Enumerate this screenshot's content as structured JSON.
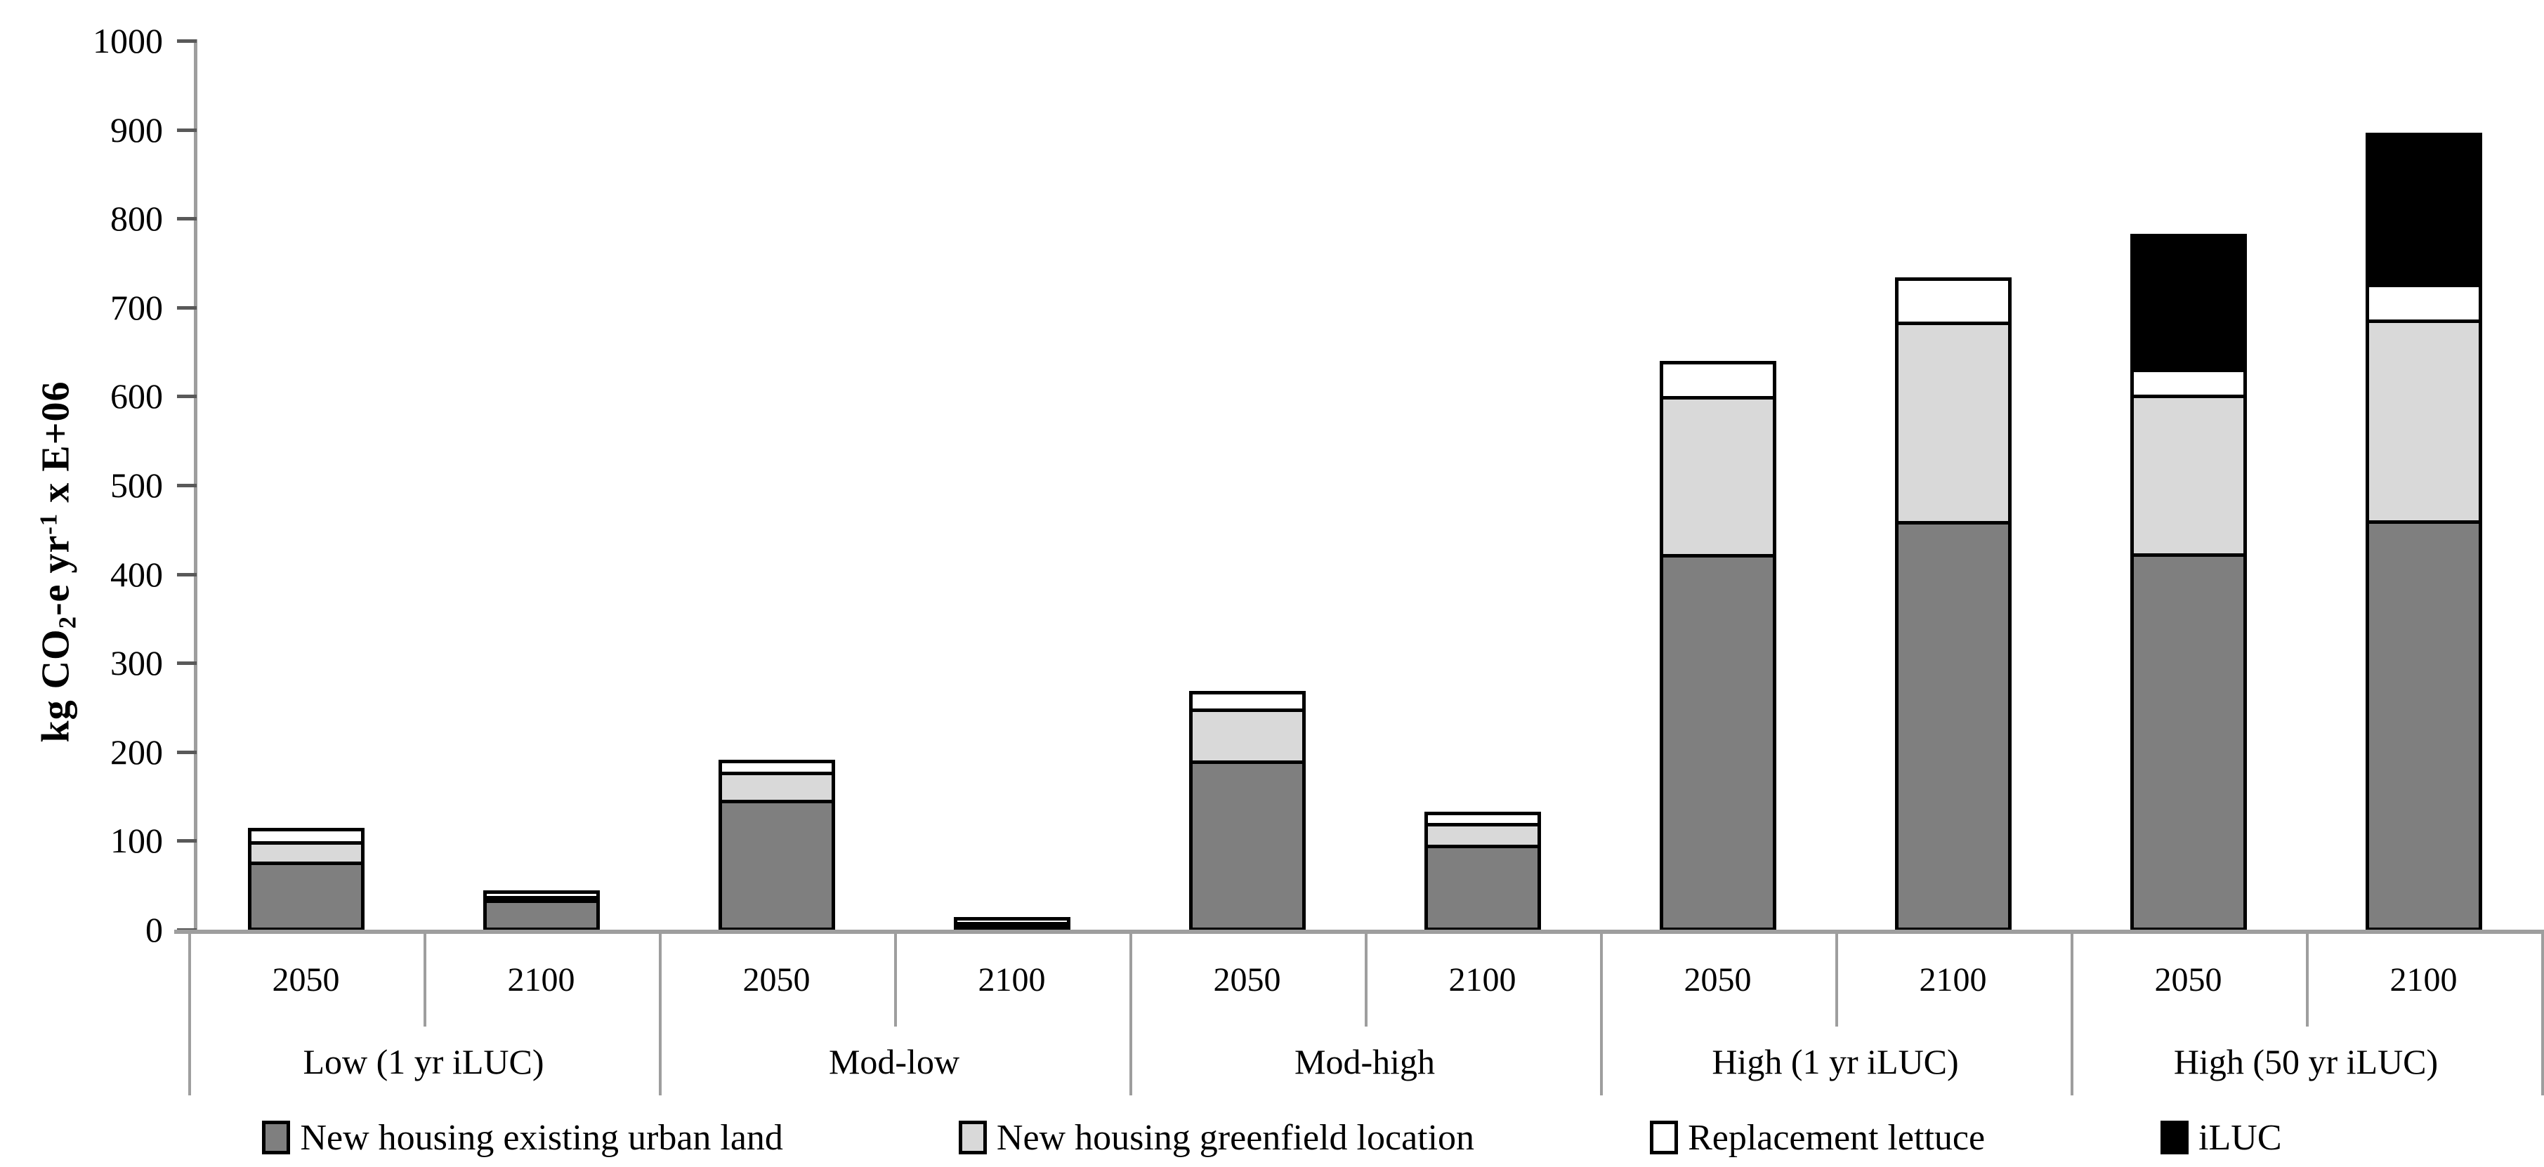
{
  "figure": {
    "ylabel_parts": {
      "pre": "kg CO",
      "sub": "2",
      "mid": "-e yr",
      "sup": "-1",
      "post": " x E+06"
    },
    "colors": {
      "series_dark_gray": "#7f7f7f",
      "series_light_gray": "#d9d9d9",
      "series_white": "#ffffff",
      "series_black": "#000000",
      "segment_outline": "#000000",
      "axis_line": "#9e9e9e",
      "tick_mark": "#595959",
      "text": "#000000",
      "background": "#ffffff"
    }
  },
  "chart_data": {
    "type": "bar",
    "stacked": true,
    "title": "",
    "ylabel": "kg CO2-e yr-1 x E+06",
    "xlabel": "",
    "ylim": [
      0,
      1000
    ],
    "ytick_step": 100,
    "yticks": [
      0,
      100,
      200,
      300,
      400,
      500,
      600,
      700,
      800,
      900,
      1000
    ],
    "grid": false,
    "legend_position": "bottom",
    "legend": [
      {
        "key": "existing",
        "label": "New housing existing urban land",
        "color": "#7f7f7f"
      },
      {
        "key": "greenfield",
        "label": "New housing greenfield location",
        "color": "#d9d9d9"
      },
      {
        "key": "replacement",
        "label": "Replacement lettuce",
        "color": "#ffffff"
      },
      {
        "key": "iluc",
        "label": "iLUC",
        "color": "#000000"
      }
    ],
    "stack_order_bottom_to_top": [
      "existing",
      "greenfield",
      "replacement",
      "iluc"
    ],
    "groups": [
      {
        "label": "Low (1 yr iLUC)",
        "bars": [
          {
            "year": "2050",
            "values": {
              "existing": 80,
              "greenfield": 24,
              "replacement": 12,
              "iluc": 0
            },
            "total": 116
          },
          {
            "year": "2100",
            "values": {
              "existing": 40,
              "greenfield": 3,
              "replacement": 3,
              "iluc": 0
            },
            "total": 46
          }
        ]
      },
      {
        "label": "Mod-low",
        "bars": [
          {
            "year": "2050",
            "values": {
              "existing": 150,
              "greenfield": 33,
              "replacement": 10,
              "iluc": 0
            },
            "total": 193
          },
          {
            "year": "2100",
            "values": {
              "existing": 12,
              "greenfield": 2,
              "replacement": 2,
              "iluc": 0
            },
            "total": 16
          }
        ]
      },
      {
        "label": "Mod-high",
        "bars": [
          {
            "year": "2050",
            "values": {
              "existing": 194,
              "greenfield": 60,
              "replacement": 16,
              "iluc": 0
            },
            "total": 270
          },
          {
            "year": "2100",
            "values": {
              "existing": 99,
              "greenfield": 26,
              "replacement": 9,
              "iluc": 0
            },
            "total": 134
          }
        ]
      },
      {
        "label": "High (1 yr iLUC)",
        "bars": [
          {
            "year": "2050",
            "values": {
              "existing": 425,
              "greenfield": 180,
              "replacement": 36,
              "iluc": 0
            },
            "total": 641
          },
          {
            "year": "2100",
            "values": {
              "existing": 462,
              "greenfield": 227,
              "replacement": 46,
              "iluc": 0
            },
            "total": 735
          }
        ]
      },
      {
        "label": "High (50 yr iLUC)",
        "bars": [
          {
            "year": "2050",
            "values": {
              "existing": 425,
              "greenfield": 180,
              "replacement": 30,
              "iluc": 149
            },
            "total": 784
          },
          {
            "year": "2100",
            "values": {
              "existing": 462,
              "greenfield": 228,
              "replacement": 41,
              "iluc": 167
            },
            "total": 898
          }
        ]
      }
    ]
  }
}
